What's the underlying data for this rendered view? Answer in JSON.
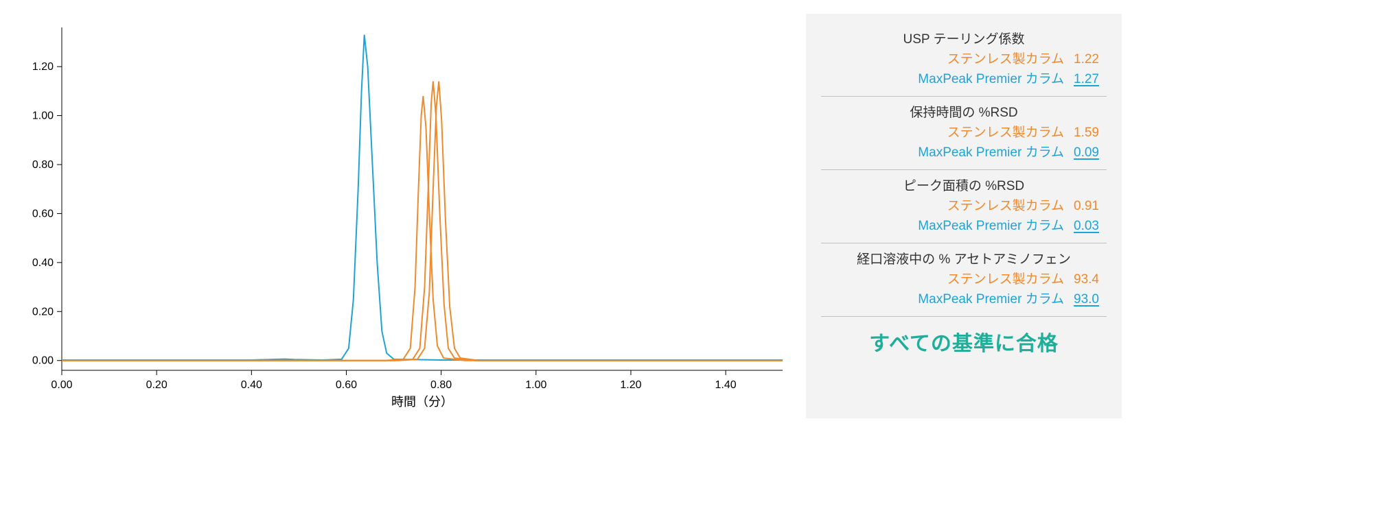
{
  "chart": {
    "type": "line",
    "x_axis": {
      "title": "時間（分）",
      "min": 0.0,
      "max": 1.52,
      "ticks": [
        0.0,
        0.2,
        0.4,
        0.6,
        0.8,
        1.0,
        1.2,
        1.4
      ],
      "tick_labels": [
        "0.00",
        "0.20",
        "0.40",
        "0.60",
        "0.80",
        "1.00",
        "1.20",
        "1.40"
      ],
      "label_fontsize": 16,
      "title_fontsize": 18
    },
    "y_axis": {
      "min": -0.04,
      "max": 1.36,
      "ticks": [
        0.0,
        0.2,
        0.4,
        0.6,
        0.8,
        1.0,
        1.2
      ],
      "tick_labels": [
        "0.00",
        "0.20",
        "0.40",
        "0.60",
        "0.80",
        "1.00",
        "1.20"
      ],
      "label_fontsize": 16
    },
    "colors": {
      "blue": "#1ea3d6",
      "orange": "#ee8a2c",
      "axis": "#000000",
      "background": "#ffffff"
    },
    "line_width": 2,
    "series": [
      {
        "name": "blue_peak",
        "color": "#1ea3d6",
        "points": [
          [
            0.0,
            0.002
          ],
          [
            0.4,
            0.002
          ],
          [
            0.47,
            0.006
          ],
          [
            0.49,
            0.004
          ],
          [
            0.55,
            0.002
          ],
          [
            0.59,
            0.005
          ],
          [
            0.605,
            0.05
          ],
          [
            0.615,
            0.25
          ],
          [
            0.625,
            0.7
          ],
          [
            0.632,
            1.1
          ],
          [
            0.638,
            1.33
          ],
          [
            0.645,
            1.2
          ],
          [
            0.655,
            0.8
          ],
          [
            0.665,
            0.4
          ],
          [
            0.675,
            0.12
          ],
          [
            0.685,
            0.03
          ],
          [
            0.7,
            0.005
          ],
          [
            0.8,
            0.002
          ],
          [
            1.52,
            0.002
          ]
        ]
      },
      {
        "name": "orange_peak_1",
        "color": "#ee8a2c",
        "points": [
          [
            0.0,
            0.0
          ],
          [
            0.68,
            0.0
          ],
          [
            0.72,
            0.005
          ],
          [
            0.735,
            0.05
          ],
          [
            0.745,
            0.3
          ],
          [
            0.752,
            0.7
          ],
          [
            0.758,
            1.0
          ],
          [
            0.762,
            1.08
          ],
          [
            0.768,
            0.95
          ],
          [
            0.775,
            0.6
          ],
          [
            0.783,
            0.25
          ],
          [
            0.792,
            0.06
          ],
          [
            0.805,
            0.01
          ],
          [
            0.85,
            0.0
          ],
          [
            1.52,
            0.0
          ]
        ]
      },
      {
        "name": "orange_peak_2",
        "color": "#ee8a2c",
        "points": [
          [
            0.0,
            0.0
          ],
          [
            0.7,
            0.0
          ],
          [
            0.74,
            0.005
          ],
          [
            0.755,
            0.05
          ],
          [
            0.765,
            0.3
          ],
          [
            0.773,
            0.72
          ],
          [
            0.779,
            1.05
          ],
          [
            0.783,
            1.14
          ],
          [
            0.789,
            1.0
          ],
          [
            0.797,
            0.6
          ],
          [
            0.806,
            0.23
          ],
          [
            0.815,
            0.05
          ],
          [
            0.828,
            0.01
          ],
          [
            0.87,
            0.0
          ],
          [
            1.52,
            0.0
          ]
        ]
      },
      {
        "name": "orange_peak_3",
        "color": "#ee8a2c",
        "points": [
          [
            0.0,
            0.0
          ],
          [
            0.71,
            0.0
          ],
          [
            0.75,
            0.005
          ],
          [
            0.765,
            0.05
          ],
          [
            0.775,
            0.28
          ],
          [
            0.783,
            0.7
          ],
          [
            0.79,
            1.04
          ],
          [
            0.795,
            1.14
          ],
          [
            0.801,
            0.98
          ],
          [
            0.809,
            0.58
          ],
          [
            0.818,
            0.22
          ],
          [
            0.828,
            0.05
          ],
          [
            0.84,
            0.01
          ],
          [
            0.88,
            0.0
          ],
          [
            1.52,
            0.0
          ]
        ]
      }
    ]
  },
  "panel": {
    "background": "#f3f3f3",
    "divider_color": "#bfbfbf",
    "stainless_label": "ステンレス製カラム",
    "premier_label": "MaxPeak Premier カラム",
    "metrics": [
      {
        "title": "USP テーリング係数",
        "stainless": "1.22",
        "premier": "1.27"
      },
      {
        "title": "保持時間の %RSD",
        "stainless": "1.59",
        "premier": "0.09"
      },
      {
        "title": "ピーク面積の %RSD",
        "stainless": "0.91",
        "premier": "0.03"
      },
      {
        "title": "経口溶液中の % アセトアミノフェン",
        "stainless": "93.4",
        "premier": "93.0"
      }
    ],
    "pass_text": "すべての基準に合格",
    "pass_color": "#1fae9a",
    "orange": "#ee8a2c",
    "blue": "#1ea3d6",
    "font_size": 19,
    "pass_font_size": 30
  }
}
